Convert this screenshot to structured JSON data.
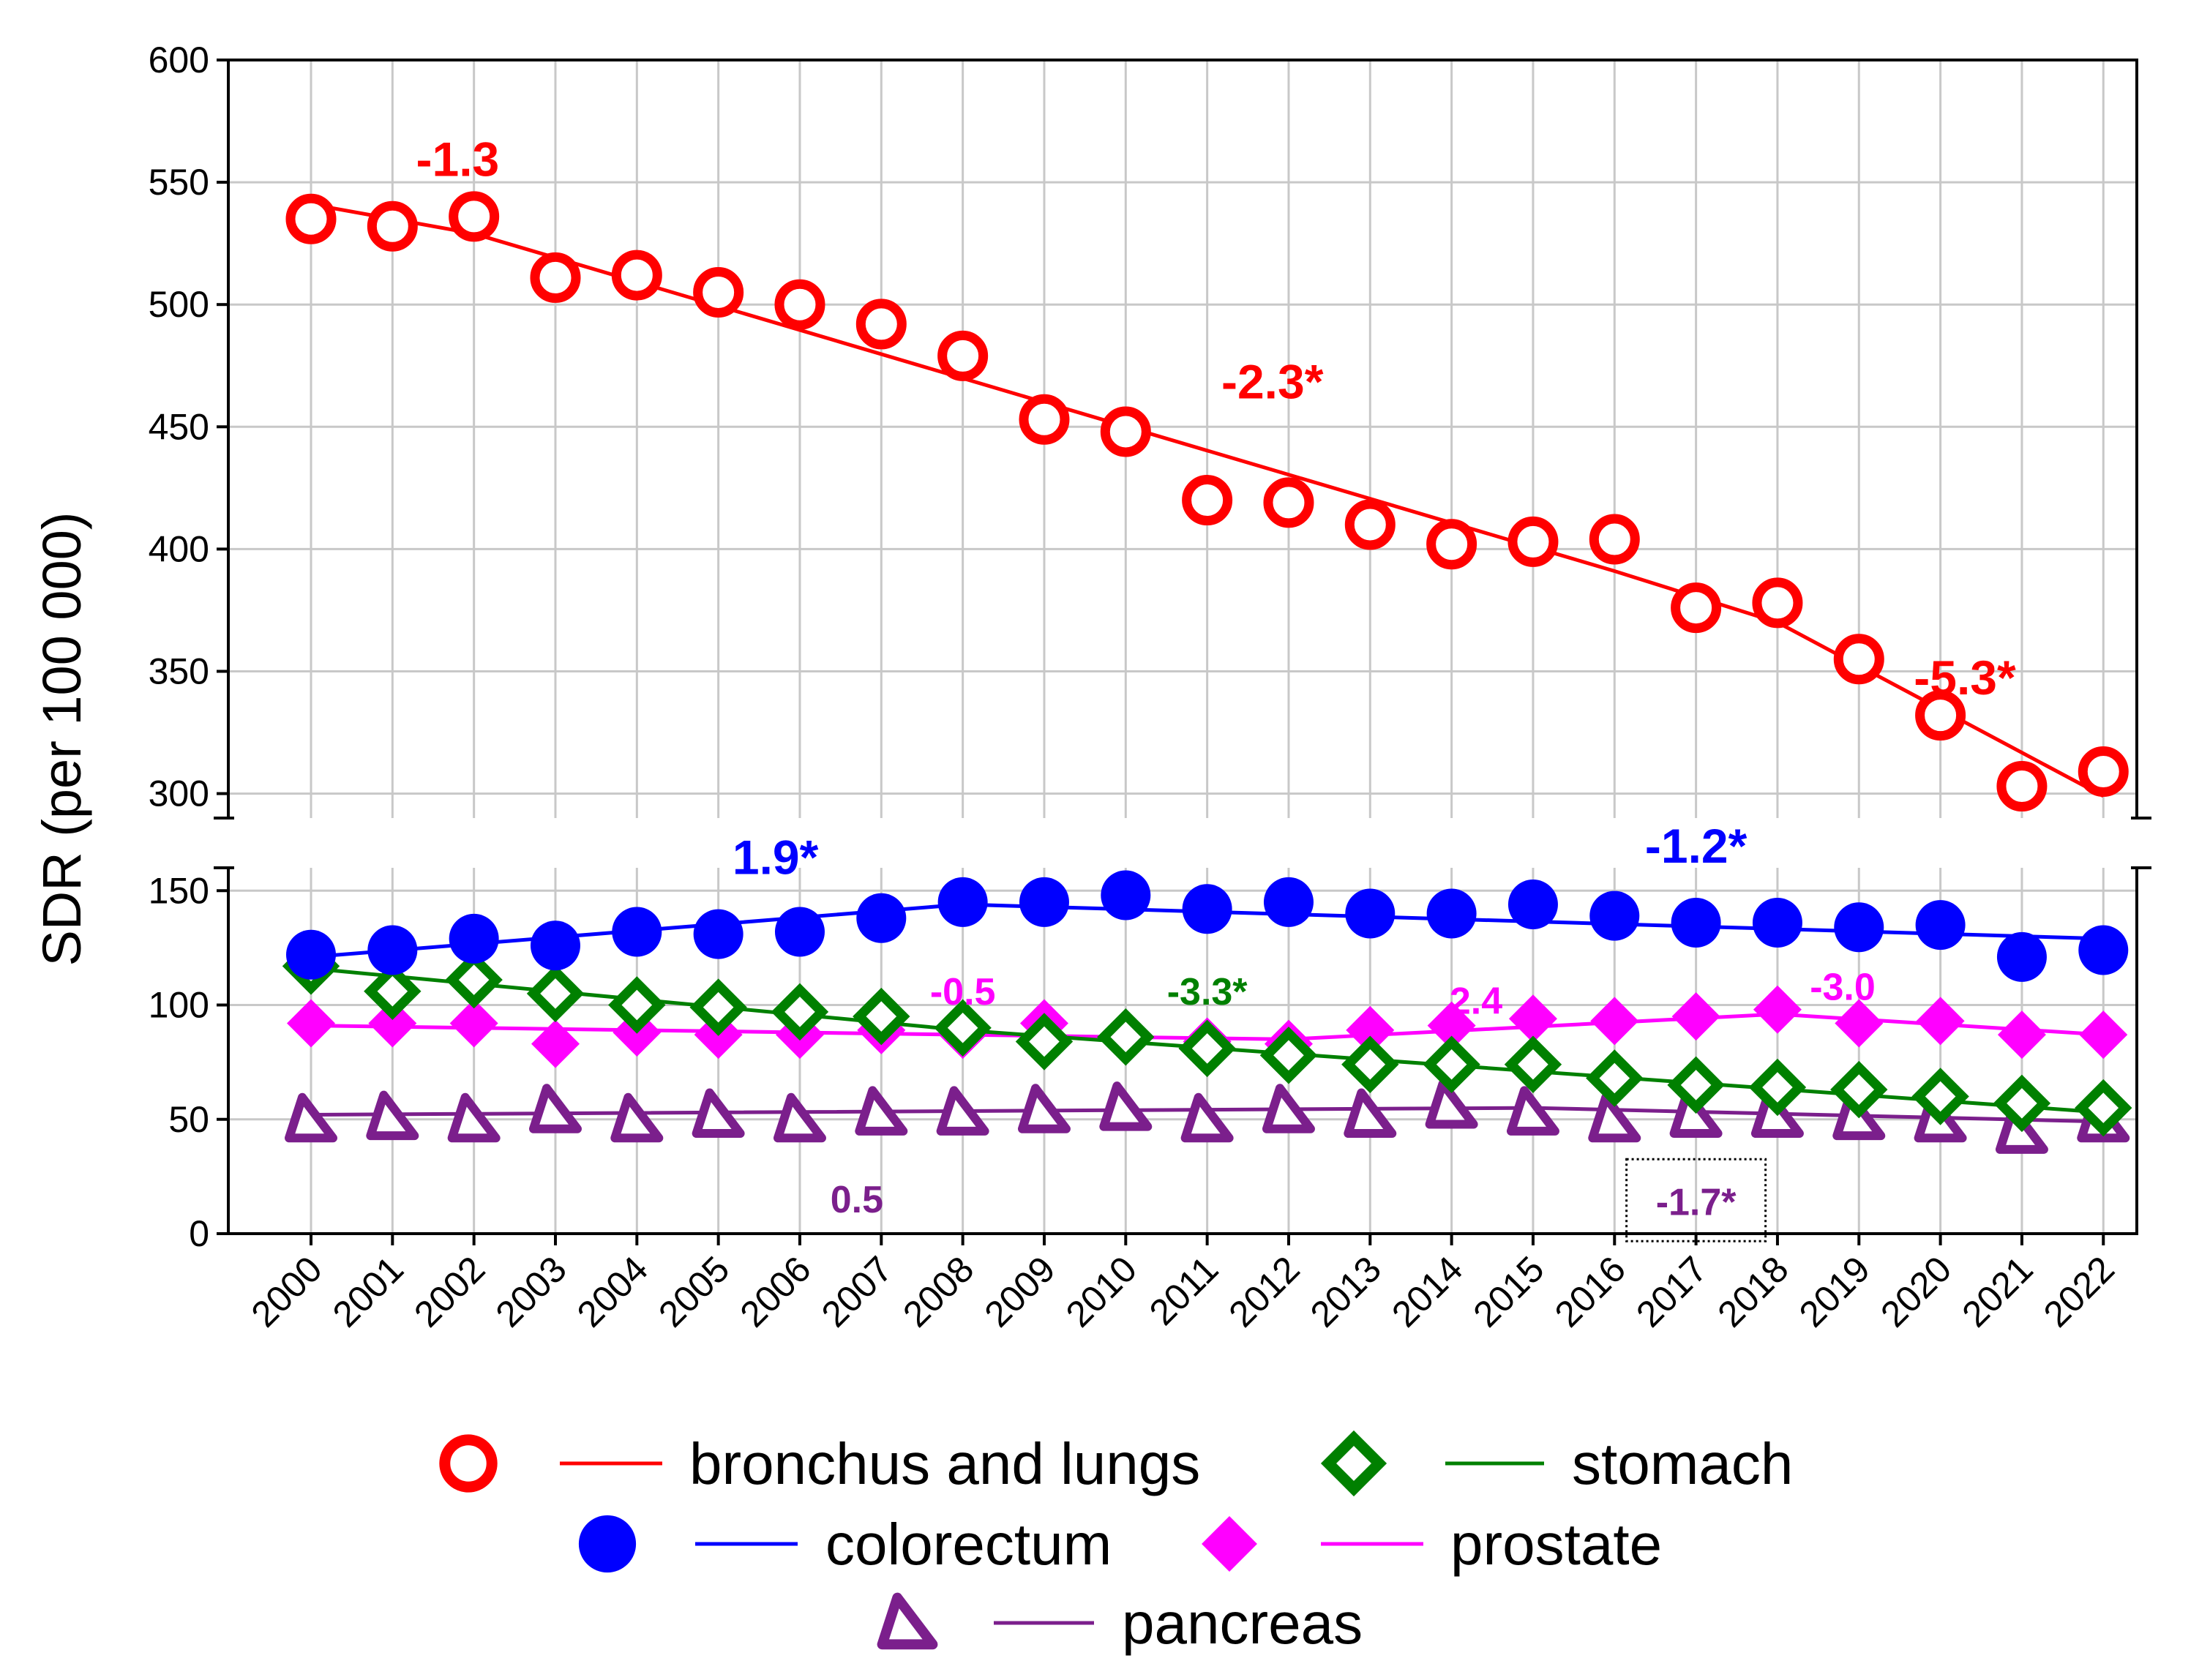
{
  "chart_data": {
    "type": "line",
    "ylabel": "SDR (per 100 000)",
    "axis_break": true,
    "upper_panel": {
      "ylim": [
        290,
        600
      ],
      "yticks": [
        300,
        350,
        400,
        450,
        500,
        550,
        600
      ]
    },
    "lower_panel": {
      "ylim": [
        0,
        160
      ],
      "yticks": [
        0,
        50,
        100,
        150
      ]
    },
    "x": [
      "2000",
      "2001",
      "2002",
      "2003",
      "2004",
      "2005",
      "2006",
      "2007",
      "2008",
      "2009",
      "2010",
      "2011",
      "2012",
      "2013",
      "2014",
      "2015",
      "2016",
      "2017",
      "2018",
      "2019",
      "2020",
      "2021",
      "2022"
    ],
    "series": [
      {
        "name": "bronchus and lungs",
        "panel": "upper",
        "color": "#ff0000",
        "marker": "open-circle",
        "values": [
          535,
          532,
          536,
          511,
          512,
          505,
          500,
          492,
          479,
          453,
          448,
          420,
          419,
          410,
          402,
          403,
          404,
          376,
          378,
          355,
          332,
          303,
          309
        ],
        "trend_nodes": [
          [
            2000,
            541
          ],
          [
            2002,
            529
          ],
          [
            2016,
            391
          ],
          [
            2018,
            370
          ],
          [
            2022,
            299
          ]
        ]
      },
      {
        "name": "colorectum",
        "panel": "lower",
        "color": "#0000ff",
        "marker": "filled-circle",
        "values": [
          122,
          124,
          129,
          126,
          132,
          131,
          132,
          138,
          145,
          145,
          148,
          142,
          145,
          140,
          140,
          144,
          139,
          136,
          136,
          134,
          135,
          121,
          124
        ],
        "trend_nodes": [
          [
            2000,
            121
          ],
          [
            2008,
            144
          ],
          [
            2022,
            129
          ]
        ]
      },
      {
        "name": "stomach",
        "panel": "lower",
        "color": "#008000",
        "marker": "open-diamond",
        "values": [
          117,
          106,
          111,
          105,
          100,
          99,
          97,
          95,
          90,
          84,
          86,
          81,
          78,
          74,
          74,
          74,
          68,
          65,
          64,
          63,
          60,
          57,
          55
        ],
        "trend_nodes": [
          [
            2000,
            116
          ],
          [
            2008,
            89
          ],
          [
            2022,
            53
          ]
        ]
      },
      {
        "name": "prostate",
        "panel": "lower",
        "color": "#ff00ff",
        "marker": "filled-diamond",
        "values": [
          92,
          92,
          92,
          83,
          88,
          87,
          87,
          89,
          87,
          92,
          85,
          84,
          83,
          89,
          91,
          94,
          93,
          95,
          98,
          92,
          93,
          87,
          87
        ],
        "trend_nodes": [
          [
            2000,
            91
          ],
          [
            2012,
            85
          ],
          [
            2018,
            96
          ],
          [
            2022,
            87
          ]
        ]
      },
      {
        "name": "pancreas",
        "panel": "lower",
        "color": "#7b1f8c",
        "marker": "triangle",
        "values": [
          50,
          51,
          50,
          54,
          50,
          52,
          50,
          53,
          53,
          54,
          55,
          50,
          54,
          52,
          56,
          53,
          50,
          52,
          52,
          51,
          50,
          45,
          50
        ],
        "trend_nodes": [
          [
            2000,
            52
          ],
          [
            2015,
            55
          ],
          [
            2022,
            49
          ]
        ]
      }
    ],
    "annotations": [
      {
        "text": "-1.3",
        "color": "#ff0000",
        "x": 2001.8,
        "y": 558,
        "panel": "upper",
        "size": "big"
      },
      {
        "text": "-2.3*",
        "color": "#ff0000",
        "x": 2011.8,
        "y": 467,
        "panel": "upper",
        "size": "big"
      },
      {
        "text": "-5.3*",
        "color": "#ff0000",
        "x": 2020.3,
        "y": 346,
        "panel": "upper",
        "size": "big"
      },
      {
        "text": "1.9*",
        "color": "#0000ff",
        "x": 2005.7,
        "y": 163,
        "panel": "lower",
        "size": "big"
      },
      {
        "text": "-1.2*",
        "color": "#0000ff",
        "x": 2017.0,
        "y": 168,
        "panel": "lower",
        "size": "big"
      },
      {
        "text": "-0.5",
        "color": "#ff00ff",
        "x": 2008.0,
        "y": 106,
        "panel": "lower",
        "size": "small"
      },
      {
        "text": "-3.3*",
        "color": "#008000",
        "x": 2011.0,
        "y": 106,
        "panel": "lower",
        "size": "small"
      },
      {
        "text": "2.4",
        "color": "#ff00ff",
        "x": 2014.3,
        "y": 102,
        "panel": "lower",
        "size": "small"
      },
      {
        "text": "-3.0",
        "color": "#ff00ff",
        "x": 2018.8,
        "y": 108,
        "panel": "lower",
        "size": "small"
      },
      {
        "text": "0.5",
        "color": "#7b1f8c",
        "x": 2006.7,
        "y": 15,
        "panel": "lower",
        "size": "small"
      },
      {
        "text": "-1.7*",
        "color": "#7b1f8c",
        "x": 2017.0,
        "y": 14,
        "panel": "lower",
        "size": "small",
        "boxed": true
      }
    ],
    "legend": {
      "placement": "bottom-center",
      "rows": [
        [
          "bronchus and lungs",
          "stomach"
        ],
        [
          "colorectum",
          "prostate"
        ],
        [
          "pancreas"
        ]
      ]
    }
  }
}
